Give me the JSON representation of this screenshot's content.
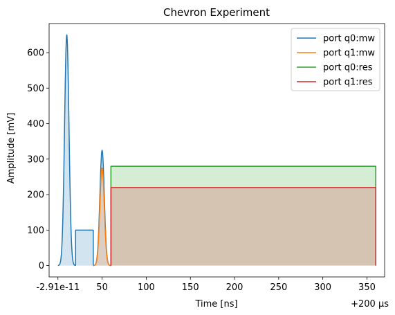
{
  "chart_data": {
    "type": "line",
    "title": "Chevron Experiment",
    "xlabel": "Time [ns]",
    "ylabel": "Amplitude [mV]",
    "x_offset_label": "+200 µs",
    "xlim": [
      -10,
      370
    ],
    "ylim": [
      -32,
      682
    ],
    "x_ticks": [
      {
        "value": 0,
        "label": "-2.91e-11"
      },
      {
        "value": 50,
        "label": "50"
      },
      {
        "value": 100,
        "label": "100"
      },
      {
        "value": 150,
        "label": "150"
      },
      {
        "value": 200,
        "label": "200"
      },
      {
        "value": 250,
        "label": "250"
      },
      {
        "value": 300,
        "label": "300"
      },
      {
        "value": 350,
        "label": "350"
      }
    ],
    "y_ticks": [
      0,
      100,
      200,
      300,
      400,
      500,
      600
    ],
    "legend_position": "top-right",
    "series": [
      {
        "name": "port q0:mw",
        "color": "#1f77b4",
        "fill": "#1f77b4",
        "segments": [
          {
            "kind": "gaussian",
            "start": 0,
            "end": 20,
            "center": 10,
            "sigma": 2.5,
            "amplitude": 650
          },
          {
            "kind": "square",
            "start": 20,
            "end": 40,
            "level": 100
          },
          {
            "kind": "gaussian",
            "start": 40,
            "end": 60,
            "center": 50,
            "sigma": 2.5,
            "amplitude": 325
          }
        ]
      },
      {
        "name": "port q1:mw",
        "color": "#ff7f0e",
        "fill": "#ff7f0e",
        "segments": [
          {
            "kind": "gaussian",
            "start": 40,
            "end": 60,
            "center": 50,
            "sigma": 2.5,
            "amplitude": 275
          }
        ]
      },
      {
        "name": "port q0:res",
        "color": "#2ca02c",
        "fill": "#2ca02c",
        "segments": [
          {
            "kind": "square",
            "start": 60,
            "end": 360,
            "level": 280
          }
        ]
      },
      {
        "name": "port q1:res",
        "color": "#d62728",
        "fill": "#d62728",
        "segments": [
          {
            "kind": "square",
            "start": 60,
            "end": 360,
            "level": 220
          }
        ]
      }
    ]
  }
}
